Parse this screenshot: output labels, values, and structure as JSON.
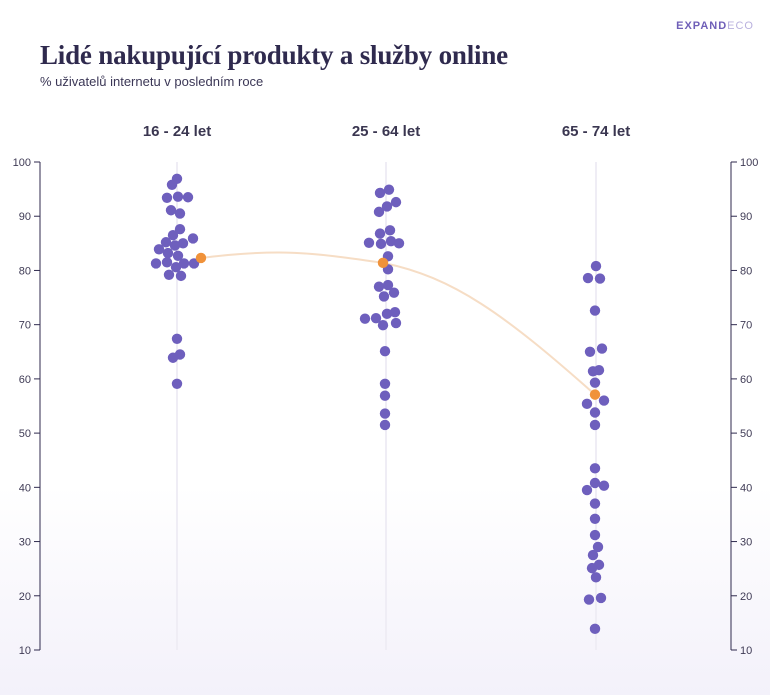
{
  "brand": {
    "part1": "EXPAND",
    "part2": "ECO"
  },
  "header": {
    "title": "Lidé nakupující produkty a služby online",
    "subtitle": "% uživatelů internetu v posledním roce"
  },
  "colors": {
    "dot": "#6e5fbd",
    "highlight": "#f0923a",
    "trend": "#f6ddc5",
    "axis": "#2f2a4e",
    "guide": "#efedf5"
  },
  "chart_data": {
    "type": "scatter",
    "ylim": [
      10,
      100
    ],
    "yticks": [
      10,
      20,
      30,
      40,
      50,
      60,
      70,
      80,
      90,
      100
    ],
    "categories": [
      "16 - 24 let",
      "25 - 64 let",
      "65 - 74 let"
    ],
    "series": [
      {
        "category": "16 - 24 let",
        "points": [
          {
            "x": 0.0,
            "y": 96.9
          },
          {
            "x": -0.5,
            "y": 95.8
          },
          {
            "x": -1.0,
            "y": 93.4
          },
          {
            "x": 0.1,
            "y": 93.6
          },
          {
            "x": 1.1,
            "y": 93.5
          },
          {
            "x": -0.6,
            "y": 91.1
          },
          {
            "x": 0.3,
            "y": 90.5
          },
          {
            "x": 0.3,
            "y": 87.6
          },
          {
            "x": -0.4,
            "y": 86.5
          },
          {
            "x": 1.6,
            "y": 85.9
          },
          {
            "x": -1.1,
            "y": 85.2
          },
          {
            "x": 0.6,
            "y": 85.0
          },
          {
            "x": -0.2,
            "y": 84.6
          },
          {
            "x": -1.8,
            "y": 83.9
          },
          {
            "x": -0.9,
            "y": 83.2
          },
          {
            "x": 0.1,
            "y": 82.7
          },
          {
            "x": -2.1,
            "y": 81.3
          },
          {
            "x": -1.0,
            "y": 81.5
          },
          {
            "x": 0.7,
            "y": 81.3
          },
          {
            "x": 1.7,
            "y": 81.3
          },
          {
            "x": -0.1,
            "y": 80.6
          },
          {
            "x": -0.8,
            "y": 79.2
          },
          {
            "x": 0.4,
            "y": 79.0
          },
          {
            "x": 0.0,
            "y": 67.4
          },
          {
            "x": 0.3,
            "y": 64.5
          },
          {
            "x": -0.4,
            "y": 63.9
          },
          {
            "x": 0.0,
            "y": 59.1
          }
        ],
        "highlight": {
          "x": 2.4,
          "y": 82.3
        }
      },
      {
        "category": "25 - 64 let",
        "points": [
          {
            "x": 0.3,
            "y": 94.9
          },
          {
            "x": -0.6,
            "y": 94.3
          },
          {
            "x": 1.0,
            "y": 92.6
          },
          {
            "x": 0.1,
            "y": 91.8
          },
          {
            "x": -0.7,
            "y": 90.8
          },
          {
            "x": 0.4,
            "y": 87.4
          },
          {
            "x": -0.6,
            "y": 86.8
          },
          {
            "x": -1.7,
            "y": 85.1
          },
          {
            "x": -0.5,
            "y": 84.9
          },
          {
            "x": 0.5,
            "y": 85.4
          },
          {
            "x": 1.3,
            "y": 85.0
          },
          {
            "x": 0.2,
            "y": 82.6
          },
          {
            "x": 0.2,
            "y": 80.2
          },
          {
            "x": 0.2,
            "y": 77.3
          },
          {
            "x": -0.7,
            "y": 77.0
          },
          {
            "x": 0.8,
            "y": 75.9
          },
          {
            "x": -0.2,
            "y": 75.2
          },
          {
            "x": 0.9,
            "y": 72.3
          },
          {
            "x": 0.1,
            "y": 72.0
          },
          {
            "x": -2.1,
            "y": 71.1
          },
          {
            "x": -1.0,
            "y": 71.2
          },
          {
            "x": 1.0,
            "y": 70.3
          },
          {
            "x": -0.3,
            "y": 69.9
          },
          {
            "x": -0.1,
            "y": 65.1
          },
          {
            "x": -0.1,
            "y": 59.1
          },
          {
            "x": -0.1,
            "y": 56.9
          },
          {
            "x": -0.1,
            "y": 53.6
          },
          {
            "x": -0.1,
            "y": 51.5
          }
        ],
        "highlight": {
          "x": -0.3,
          "y": 81.4
        }
      },
      {
        "category": "65 - 74 let",
        "points": [
          {
            "x": 0.0,
            "y": 80.8
          },
          {
            "x": -0.8,
            "y": 78.6
          },
          {
            "x": 0.4,
            "y": 78.5
          },
          {
            "x": -0.1,
            "y": 72.6
          },
          {
            "x": -0.6,
            "y": 65.0
          },
          {
            "x": 0.6,
            "y": 65.6
          },
          {
            "x": -0.3,
            "y": 61.4
          },
          {
            "x": 0.3,
            "y": 61.6
          },
          {
            "x": -0.1,
            "y": 59.3
          },
          {
            "x": -0.9,
            "y": 55.4
          },
          {
            "x": 0.8,
            "y": 56.0
          },
          {
            "x": -0.1,
            "y": 53.8
          },
          {
            "x": -0.1,
            "y": 51.5
          },
          {
            "x": -0.1,
            "y": 43.5
          },
          {
            "x": -0.1,
            "y": 40.8
          },
          {
            "x": -0.9,
            "y": 39.5
          },
          {
            "x": 0.8,
            "y": 40.3
          },
          {
            "x": -0.1,
            "y": 37.0
          },
          {
            "x": -0.1,
            "y": 34.2
          },
          {
            "x": -0.1,
            "y": 31.2
          },
          {
            "x": 0.2,
            "y": 29.0
          },
          {
            "x": -0.3,
            "y": 27.5
          },
          {
            "x": 0.3,
            "y": 25.7
          },
          {
            "x": -0.4,
            "y": 25.1
          },
          {
            "x": 0.0,
            "y": 23.4
          },
          {
            "x": -0.7,
            "y": 19.3
          },
          {
            "x": 0.5,
            "y": 19.6
          },
          {
            "x": -0.1,
            "y": 13.9
          }
        ],
        "highlight": {
          "x": -0.1,
          "y": 57.1
        }
      }
    ]
  }
}
